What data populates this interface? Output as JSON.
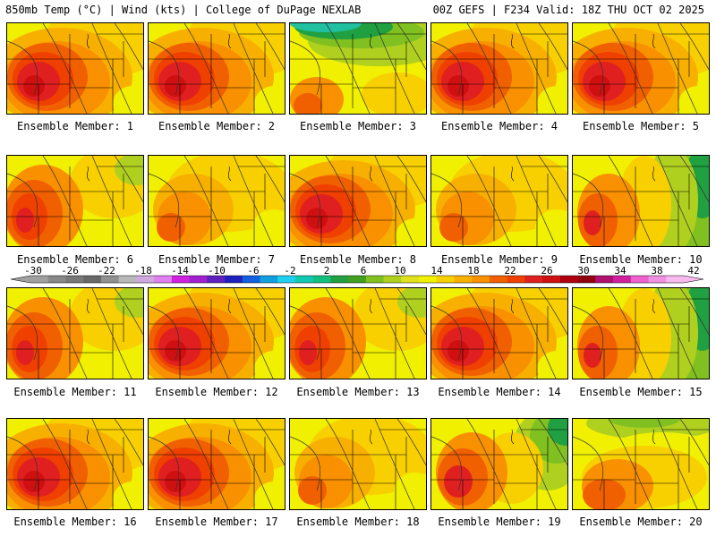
{
  "header": {
    "left": "850mb Temp (°C) | Wind (kts) | College of DuPage NEXLAB",
    "right": "00Z GEFS | F234 Valid: 18Z THU OCT 02 2025"
  },
  "member_prefix": "Ensemble Member: ",
  "members": [
    {
      "id": "1",
      "pattern": "hot"
    },
    {
      "id": "2",
      "pattern": "hot"
    },
    {
      "id": "3",
      "pattern": "cold_north"
    },
    {
      "id": "4",
      "pattern": "hot"
    },
    {
      "id": "5",
      "pattern": "hot"
    },
    {
      "id": "6",
      "pattern": "west_warm"
    },
    {
      "id": "7",
      "pattern": "mild"
    },
    {
      "id": "8",
      "pattern": "hot"
    },
    {
      "id": "9",
      "pattern": "mild"
    },
    {
      "id": "10",
      "pattern": "cool_east"
    },
    {
      "id": "11",
      "pattern": "west_warm"
    },
    {
      "id": "12",
      "pattern": "hot"
    },
    {
      "id": "13",
      "pattern": "west_warm"
    },
    {
      "id": "14",
      "pattern": "hot"
    },
    {
      "id": "15",
      "pattern": "cool_east"
    },
    {
      "id": "16",
      "pattern": "hot"
    },
    {
      "id": "17",
      "pattern": "hot"
    },
    {
      "id": "18",
      "pattern": "mild"
    },
    {
      "id": "19",
      "pattern": "cool_ne"
    },
    {
      "id": "20",
      "pattern": "cool_north"
    }
  ],
  "colorbar": {
    "tick_labels": [
      "-30",
      "-26",
      "-22",
      "-18",
      "-14",
      "-10",
      "-6",
      "-2",
      "2",
      "6",
      "10",
      "14",
      "18",
      "22",
      "26",
      "30",
      "34",
      "38",
      "42"
    ],
    "colors": [
      "#a0a0a0",
      "#888888",
      "#787878",
      "#686868",
      "#909090",
      "#b8b8b8",
      "#d0a8e0",
      "#e080f0",
      "#d020e0",
      "#a020d0",
      "#6020c0",
      "#2020c0",
      "#1060e0",
      "#10a0e0",
      "#20d0f0",
      "#10c8b0",
      "#10c080",
      "#20a040",
      "#40a020",
      "#80c020",
      "#b0d020",
      "#e0e020",
      "#f0f000",
      "#f8d000",
      "#f8b000",
      "#f89000",
      "#f06000",
      "#f04000",
      "#e02020",
      "#d01010",
      "#b00010",
      "#900010",
      "#b01070",
      "#d020a0",
      "#f060d0",
      "#f090e0",
      "#f8b8f0"
    ]
  },
  "palette": {
    "cold_green": "#20a040",
    "teal": "#20c0a0",
    "light_green": "#80c020",
    "yellow_green": "#b0d020",
    "yellow": "#f0f000",
    "gold": "#f8d000",
    "orange_light": "#f8b000",
    "orange": "#f89000",
    "orange_dark": "#f06000",
    "red_orange": "#f04000",
    "red": "#e02020",
    "dark_red": "#d01010"
  }
}
